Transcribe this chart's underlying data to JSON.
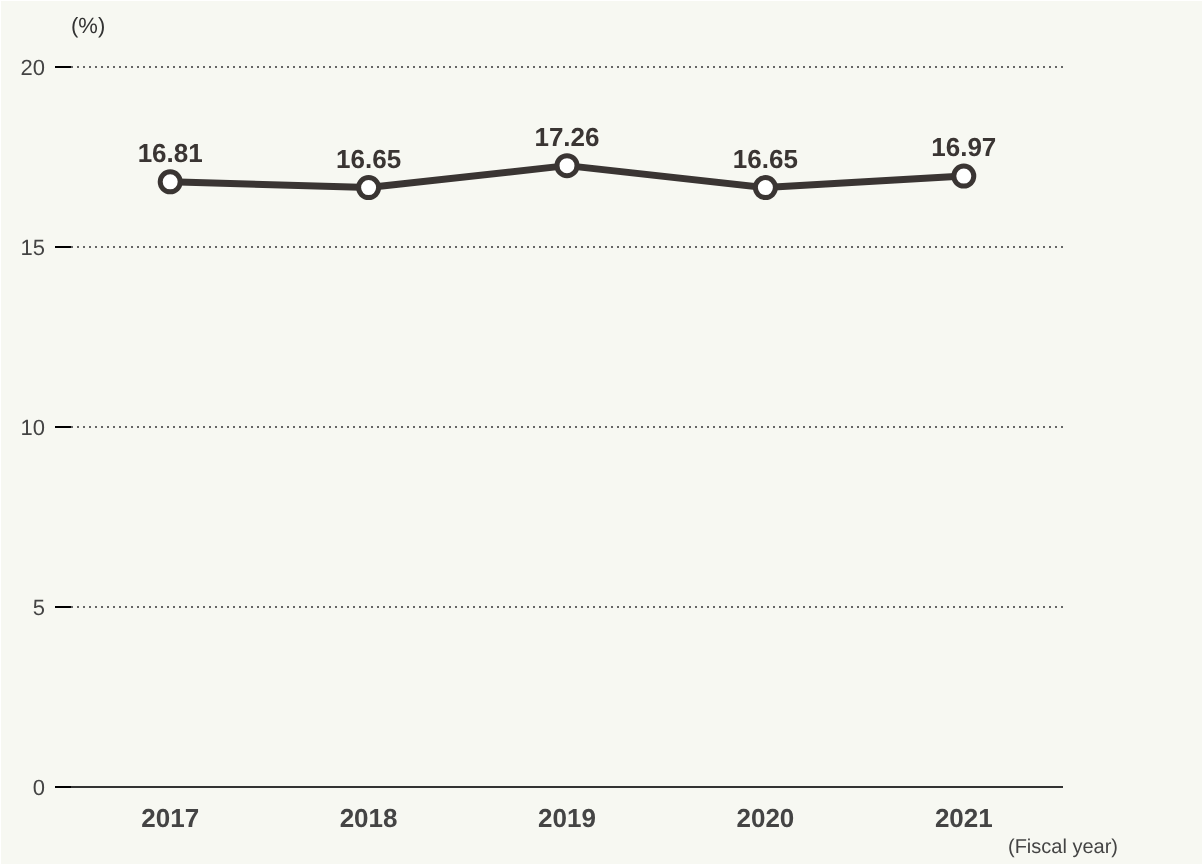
{
  "chart_data": {
    "type": "line",
    "ylabel": "(%)",
    "xlabel": "(Fiscal year)",
    "categories": [
      "2017",
      "2018",
      "2019",
      "2020",
      "2021"
    ],
    "series": [
      {
        "color": "#3a3533",
        "values": [
          16.81,
          16.65,
          17.26,
          16.65,
          16.97
        ]
      }
    ],
    "ylim": [
      0,
      20.5
    ],
    "yticks": [
      0,
      5,
      10,
      15,
      20
    ],
    "grid": "y",
    "marker": "circle",
    "line_style": "solid",
    "data_labels": true
  }
}
